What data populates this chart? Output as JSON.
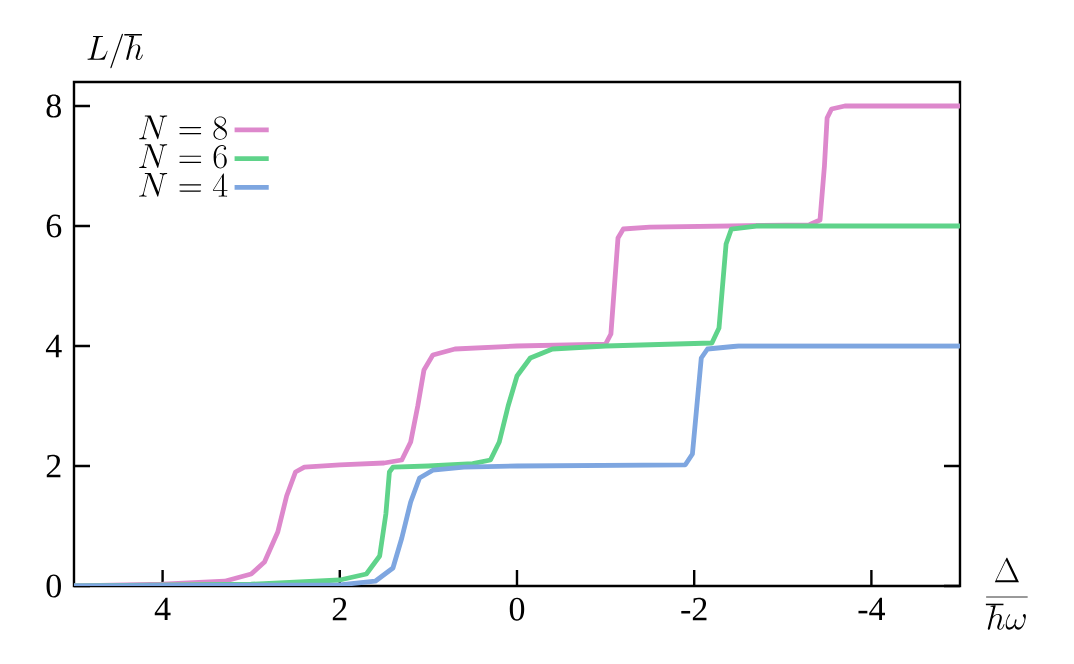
{
  "chart_data": {
    "type": "line",
    "xlabel": "\\frac{\\Delta}{\\hbar\\omega}",
    "ylabel": "L/\\hbar",
    "xlim": [
      5,
      -5
    ],
    "xticks": [
      4,
      2,
      0,
      -2,
      -4
    ],
    "ylim": [
      0,
      8.4
    ],
    "yticks": [
      0,
      2,
      4,
      6,
      8
    ],
    "legend": "top left",
    "line_style": "solid",
    "series": [
      {
        "name": "N = 8",
        "color": "#dd88cc",
        "x": [
          5,
          4,
          3.3,
          3.0,
          2.85,
          2.7,
          2.6,
          2.5,
          2.4,
          2.0,
          1.5,
          1.3,
          1.2,
          1.12,
          1.05,
          0.95,
          0.7,
          0.0,
          -1.0,
          -1.06,
          -1.1,
          -1.14,
          -1.2,
          -1.5,
          -3.3,
          -3.42,
          -3.47,
          -3.5,
          -3.55,
          -3.7,
          -5
        ],
        "values": [
          0.0,
          0.03,
          0.08,
          0.2,
          0.4,
          0.9,
          1.5,
          1.9,
          1.98,
          2.02,
          2.05,
          2.1,
          2.4,
          3.0,
          3.6,
          3.85,
          3.95,
          4.0,
          4.03,
          4.2,
          5.0,
          5.8,
          5.95,
          5.98,
          6.02,
          6.1,
          7.0,
          7.8,
          7.95,
          8.0,
          8.0
        ]
      },
      {
        "name": "N = 6",
        "color": "#5fd38a",
        "x": [
          5,
          3,
          2.0,
          1.7,
          1.55,
          1.48,
          1.44,
          1.4,
          1.0,
          0.5,
          0.3,
          0.2,
          0.1,
          0.0,
          -0.15,
          -0.4,
          -1.0,
          -2.2,
          -2.28,
          -2.32,
          -2.36,
          -2.42,
          -2.7,
          -5
        ],
        "values": [
          0,
          0.03,
          0.1,
          0.2,
          0.5,
          1.2,
          1.9,
          1.98,
          2.0,
          2.04,
          2.1,
          2.4,
          3.0,
          3.5,
          3.8,
          3.95,
          4.0,
          4.05,
          4.3,
          5.0,
          5.7,
          5.95,
          6.0,
          6.0
        ]
      },
      {
        "name": "N = 4",
        "color": "#7ea6e0",
        "x": [
          5,
          2.0,
          1.6,
          1.4,
          1.3,
          1.2,
          1.1,
          0.95,
          0.6,
          0,
          -1.9,
          -1.98,
          -2.03,
          -2.08,
          -2.15,
          -2.5,
          -5
        ],
        "values": [
          0,
          0.02,
          0.08,
          0.3,
          0.8,
          1.4,
          1.8,
          1.93,
          1.98,
          2.0,
          2.02,
          2.2,
          3.0,
          3.8,
          3.95,
          4.0,
          4.0
        ]
      }
    ]
  }
}
